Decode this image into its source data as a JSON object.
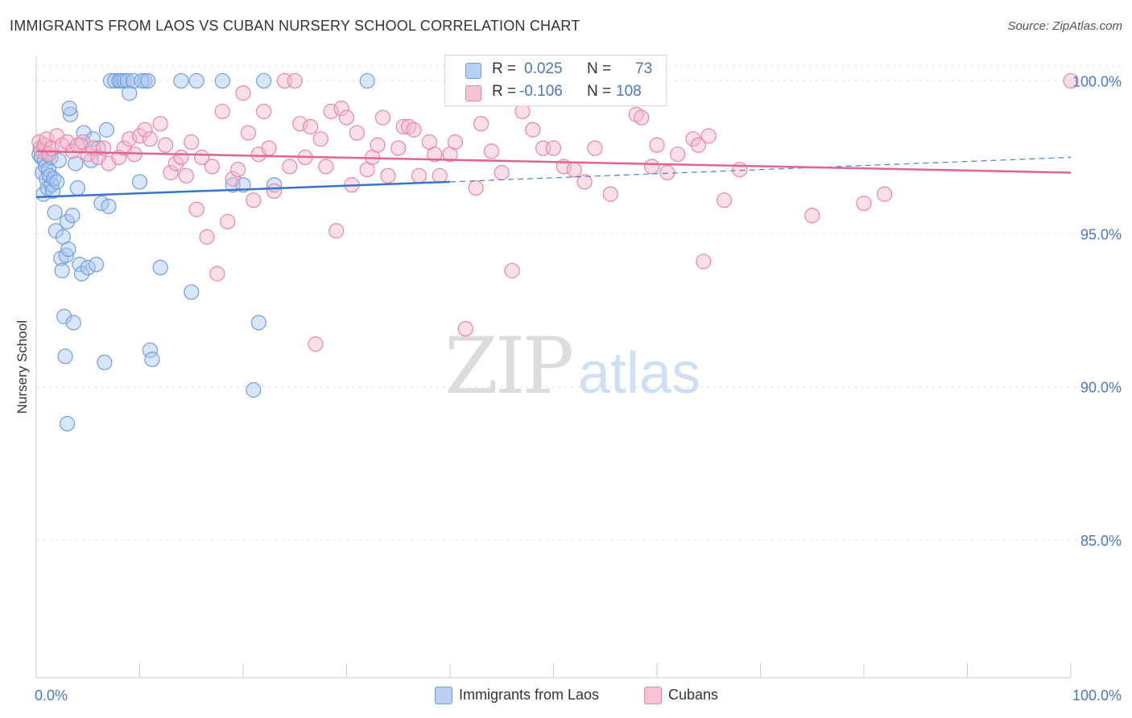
{
  "title": "IMMIGRANTS FROM LAOS VS CUBAN NURSERY SCHOOL CORRELATION CHART",
  "source": "Source: ZipAtlas.com",
  "watermark": {
    "zip": "ZIP",
    "atlas": "atlas"
  },
  "legend_stats": [
    {
      "r_label": "R =",
      "r_value": "0.025",
      "n_label": "N =",
      "n_value": "73",
      "color": "#6f9fe0",
      "fill": "#b8d0f3"
    },
    {
      "r_label": "R =",
      "r_value": "-0.106",
      "n_label": "N =",
      "n_value": "108",
      "color": "#ec84a6",
      "fill": "#f8c4d5"
    }
  ],
  "bottom_legend": [
    {
      "label": "Immigrants from Laos",
      "color": "#6f9fe0",
      "fill": "#b8d0f3"
    },
    {
      "label": "Cubans",
      "color": "#ec84a6",
      "fill": "#f8c4d5"
    }
  ],
  "chart_data": {
    "type": "scatter",
    "title": "IMMIGRANTS FROM LAOS VS CUBAN NURSERY SCHOOL CORRELATION CHART",
    "xlabel": "",
    "ylabel": "Nursery School",
    "xlim": [
      0,
      100
    ],
    "ylim": [
      80.5,
      100.8
    ],
    "x_tick_labels": [
      "0.0%",
      "100.0%"
    ],
    "y_ticks": [
      85,
      90,
      95,
      100
    ],
    "y_tick_labels": [
      "85.0%",
      "90.0%",
      "95.0%",
      "100.0%"
    ],
    "grid": true,
    "series": [
      {
        "name": "Immigrants from Laos",
        "color": "#4a7fd4",
        "trend": {
          "x": [
            0,
            40
          ],
          "y": [
            96.2,
            96.7
          ],
          "dashed_to": [
            100,
            97.5
          ]
        },
        "points": [
          [
            0.3,
            97.6
          ],
          [
            0.4,
            97.8
          ],
          [
            0.5,
            97.5
          ],
          [
            0.6,
            97.0
          ],
          [
            0.7,
            96.3
          ],
          [
            0.8,
            97.4
          ],
          [
            0.9,
            97.2
          ],
          [
            1.0,
            96.8
          ],
          [
            1.1,
            96.5
          ],
          [
            1.2,
            97.1
          ],
          [
            1.3,
            96.9
          ],
          [
            1.4,
            97.5
          ],
          [
            1.5,
            96.6
          ],
          [
            1.6,
            96.4
          ],
          [
            1.7,
            96.8
          ],
          [
            1.8,
            95.7
          ],
          [
            1.9,
            95.1
          ],
          [
            2.0,
            96.7
          ],
          [
            2.2,
            97.4
          ],
          [
            2.4,
            94.2
          ],
          [
            2.5,
            93.8
          ],
          [
            2.6,
            94.9
          ],
          [
            2.7,
            92.3
          ],
          [
            2.8,
            91.0
          ],
          [
            2.9,
            94.3
          ],
          [
            3.0,
            95.4
          ],
          [
            3.1,
            94.5
          ],
          [
            3.3,
            98.9
          ],
          [
            3.5,
            95.6
          ],
          [
            3.6,
            92.1
          ],
          [
            3.8,
            97.3
          ],
          [
            4.0,
            96.5
          ],
          [
            4.2,
            94.0
          ],
          [
            4.4,
            93.7
          ],
          [
            4.6,
            98.3
          ],
          [
            5.0,
            93.9
          ],
          [
            5.3,
            97.4
          ],
          [
            5.5,
            98.1
          ],
          [
            5.8,
            94.0
          ],
          [
            6.0,
            97.8
          ],
          [
            6.3,
            96.0
          ],
          [
            6.6,
            90.8
          ],
          [
            7.0,
            95.9
          ],
          [
            7.2,
            100.0
          ],
          [
            7.6,
            100.0
          ],
          [
            8.0,
            100.0
          ],
          [
            8.2,
            100.0
          ],
          [
            8.5,
            100.0
          ],
          [
            8.8,
            100.0
          ],
          [
            9.0,
            99.6
          ],
          [
            9.4,
            100.0
          ],
          [
            10.0,
            96.7
          ],
          [
            11.0,
            91.2
          ],
          [
            11.2,
            90.9
          ],
          [
            12.0,
            93.9
          ],
          [
            10.5,
            100.0
          ],
          [
            10.2,
            100.0
          ],
          [
            10.8,
            100.0
          ],
          [
            14.0,
            100.0
          ],
          [
            15.0,
            93.1
          ],
          [
            15.5,
            100.0
          ],
          [
            18.0,
            100.0
          ],
          [
            19.0,
            96.6
          ],
          [
            20.0,
            96.6
          ],
          [
            21.5,
            92.1
          ],
          [
            21.0,
            89.9
          ],
          [
            22.0,
            100.0
          ],
          [
            23.0,
            96.6
          ],
          [
            32.0,
            100.0
          ],
          [
            3.2,
            99.1
          ],
          [
            6.8,
            98.4
          ],
          [
            3.0,
            88.8
          ],
          [
            4.3,
            97.9
          ]
        ]
      },
      {
        "name": "Cubans",
        "color": "#e2638f",
        "trend": {
          "x": [
            0,
            100
          ],
          "y": [
            97.7,
            97.0
          ]
        },
        "points": [
          [
            0.3,
            98.0
          ],
          [
            0.5,
            97.7
          ],
          [
            0.8,
            97.9
          ],
          [
            1.0,
            98.1
          ],
          [
            1.2,
            97.6
          ],
          [
            1.5,
            97.8
          ],
          [
            2.0,
            98.2
          ],
          [
            2.5,
            97.9
          ],
          [
            3.0,
            98.0
          ],
          [
            3.5,
            97.7
          ],
          [
            4.0,
            97.9
          ],
          [
            4.5,
            98.0
          ],
          [
            5.0,
            97.6
          ],
          [
            5.5,
            97.8
          ],
          [
            6.0,
            97.5
          ],
          [
            6.5,
            97.8
          ],
          [
            7.0,
            97.3
          ],
          [
            8.0,
            97.5
          ],
          [
            8.5,
            97.8
          ],
          [
            9.0,
            98.1
          ],
          [
            9.5,
            97.6
          ],
          [
            10.0,
            98.2
          ],
          [
            10.5,
            98.4
          ],
          [
            11.0,
            98.1
          ],
          [
            12.0,
            98.6
          ],
          [
            12.5,
            97.9
          ],
          [
            13.0,
            97.0
          ],
          [
            13.5,
            97.3
          ],
          [
            14.0,
            97.5
          ],
          [
            14.5,
            96.9
          ],
          [
            15.0,
            98.0
          ],
          [
            15.5,
            95.8
          ],
          [
            16.0,
            97.5
          ],
          [
            16.5,
            94.9
          ],
          [
            17.0,
            97.2
          ],
          [
            17.5,
            93.7
          ],
          [
            18.0,
            99.0
          ],
          [
            18.5,
            95.4
          ],
          [
            19.0,
            96.8
          ],
          [
            19.5,
            97.1
          ],
          [
            20.0,
            99.6
          ],
          [
            20.5,
            98.3
          ],
          [
            21.0,
            96.1
          ],
          [
            21.5,
            97.6
          ],
          [
            22.0,
            99.0
          ],
          [
            22.5,
            97.8
          ],
          [
            23.0,
            96.4
          ],
          [
            24.0,
            100.0
          ],
          [
            24.5,
            97.2
          ],
          [
            25.0,
            100.0
          ],
          [
            25.5,
            98.6
          ],
          [
            26.0,
            97.5
          ],
          [
            26.5,
            98.5
          ],
          [
            27.0,
            91.4
          ],
          [
            27.5,
            98.1
          ],
          [
            28.0,
            97.2
          ],
          [
            28.5,
            99.0
          ],
          [
            29.0,
            95.1
          ],
          [
            29.5,
            99.1
          ],
          [
            30.0,
            98.8
          ],
          [
            30.5,
            96.6
          ],
          [
            31.0,
            98.3
          ],
          [
            32.0,
            97.1
          ],
          [
            32.5,
            97.5
          ],
          [
            33.0,
            97.9
          ],
          [
            33.5,
            98.8
          ],
          [
            34.0,
            96.9
          ],
          [
            35.0,
            97.8
          ],
          [
            35.5,
            98.5
          ],
          [
            36.0,
            98.5
          ],
          [
            37.0,
            96.9
          ],
          [
            38.0,
            98.0
          ],
          [
            38.5,
            97.6
          ],
          [
            39.0,
            96.9
          ],
          [
            40.0,
            97.6
          ],
          [
            40.5,
            98.0
          ],
          [
            41.5,
            91.9
          ],
          [
            42.5,
            96.5
          ],
          [
            43.0,
            98.6
          ],
          [
            44.0,
            97.7
          ],
          [
            45.0,
            97.0
          ],
          [
            46.0,
            93.8
          ],
          [
            47.0,
            99.0
          ],
          [
            48.0,
            98.4
          ],
          [
            49.0,
            97.8
          ],
          [
            50.0,
            97.8
          ],
          [
            51.0,
            97.2
          ],
          [
            52.0,
            97.1
          ],
          [
            53.0,
            96.7
          ],
          [
            54.0,
            97.8
          ],
          [
            55.5,
            96.3
          ],
          [
            58.0,
            98.9
          ],
          [
            58.5,
            98.8
          ],
          [
            59.5,
            97.2
          ],
          [
            60.0,
            97.9
          ],
          [
            61.0,
            97.0
          ],
          [
            62.0,
            97.6
          ],
          [
            63.5,
            98.1
          ],
          [
            64.0,
            97.9
          ],
          [
            64.5,
            94.1
          ],
          [
            65.0,
            98.2
          ],
          [
            66.5,
            96.1
          ],
          [
            68.0,
            97.1
          ],
          [
            75.0,
            95.6
          ],
          [
            80.0,
            96.0
          ],
          [
            82.0,
            96.3
          ],
          [
            100.0,
            100.0
          ],
          [
            36.5,
            98.4
          ]
        ]
      }
    ]
  }
}
